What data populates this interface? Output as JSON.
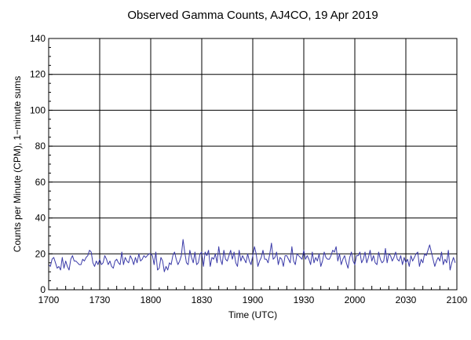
{
  "chart_data": {
    "type": "line",
    "title": "Observed Gamma Counts, AJ4CO, 19 Apr 2019",
    "xlabel": "Time (UTC)",
    "ylabel": "Counts per Minute (CPM), 1−minute sums",
    "x_range_minutes": [
      0,
      240
    ],
    "x_tick_labels": [
      "1700",
      "1730",
      "1800",
      "1830",
      "1900",
      "1930",
      "2000",
      "2030",
      "2100"
    ],
    "ylim": [
      0,
      140
    ],
    "y_ticks": [
      0,
      20,
      40,
      60,
      80,
      100,
      120,
      140
    ],
    "grid": true,
    "legend": "none",
    "series": [
      {
        "color": "#3a3aa8",
        "x_start": "1700",
        "x_step_minutes": 1,
        "values": [
          14,
          13,
          17,
          18,
          15,
          12,
          13,
          11,
          18,
          12,
          16,
          13,
          11,
          17,
          19,
          16,
          16,
          15,
          14,
          14,
          17,
          16,
          18,
          19,
          22,
          21,
          15,
          13,
          16,
          14,
          17,
          14,
          15,
          19,
          17,
          14,
          16,
          13,
          12,
          16,
          17,
          15,
          14,
          21,
          14,
          18,
          16,
          15,
          19,
          17,
          14,
          18,
          15,
          20,
          16,
          17,
          19,
          18,
          19,
          20,
          20,
          19,
          14,
          21,
          11,
          12,
          18,
          16,
          10,
          13,
          11,
          15,
          14,
          19,
          21,
          17,
          14,
          16,
          19,
          28,
          21,
          15,
          14,
          22,
          18,
          15,
          21,
          14,
          15,
          20,
          21,
          13,
          21,
          19,
          22,
          13,
          18,
          17,
          20,
          15,
          24,
          17,
          14,
          22,
          17,
          16,
          19,
          22,
          17,
          21,
          15,
          13,
          22,
          16,
          19,
          17,
          15,
          20,
          16,
          14,
          19,
          24,
          20,
          13,
          16,
          18,
          22,
          17,
          17,
          15,
          20,
          26,
          17,
          18,
          21,
          14,
          18,
          17,
          13,
          19,
          19,
          17,
          15,
          24,
          16,
          14,
          20,
          19,
          18,
          17,
          22,
          17,
          19,
          17,
          14,
          21,
          15,
          18,
          16,
          20,
          13,
          16,
          21,
          18,
          17,
          17,
          19,
          22,
          21,
          24,
          16,
          20,
          14,
          17,
          19,
          15,
          12,
          18,
          21,
          16,
          14,
          19,
          19,
          21,
          15,
          17,
          21,
          15,
          18,
          22,
          16,
          19,
          15,
          14,
          21,
          17,
          15,
          16,
          23,
          15,
          20,
          19,
          16,
          18,
          21,
          17,
          16,
          19,
          14,
          18,
          15,
          17,
          13,
          19,
          16,
          18,
          20,
          21,
          13,
          17,
          15,
          20,
          19,
          22,
          25,
          21,
          17,
          13,
          16,
          18,
          16,
          21,
          14,
          17,
          15,
          22,
          11,
          15,
          18,
          15
        ]
      }
    ]
  }
}
